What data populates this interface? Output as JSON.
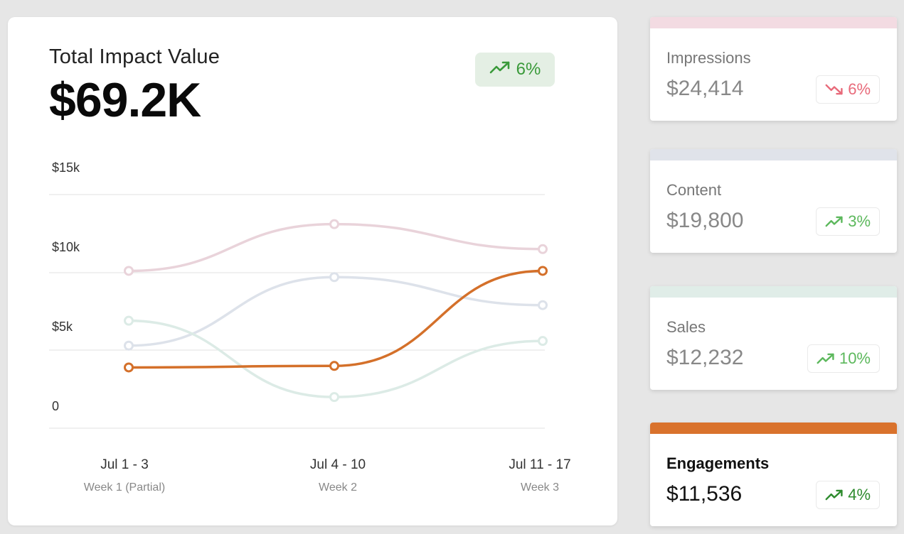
{
  "main": {
    "title": "Total Impact Value",
    "value": "$69.2K",
    "badge": {
      "text": "6%",
      "direction": "up",
      "icon": "trending-up-icon"
    }
  },
  "chart_data": {
    "type": "line",
    "categories": [
      "Jul 1 - 3",
      "Jul 4 - 10",
      "Jul 11 - 17"
    ],
    "sublabels": [
      "Week 1 (Partial)",
      "Week 2",
      "Week 3"
    ],
    "y_ticks": [
      "$15k",
      "$10k",
      "$5k",
      "0"
    ],
    "ylim": [
      0,
      15000
    ],
    "grid": true,
    "series": [
      {
        "name": "Impressions",
        "color": "#e9d3da",
        "values": [
          10100,
          13100,
          11500
        ]
      },
      {
        "name": "Content",
        "color": "#dde2ea",
        "values": [
          5300,
          9700,
          7900
        ]
      },
      {
        "name": "Sales",
        "color": "#dcebe6",
        "values": [
          6900,
          2000,
          5600
        ]
      },
      {
        "name": "Engagements",
        "color": "#d4702a",
        "values": [
          3900,
          4000,
          10100
        ],
        "highlight": true
      }
    ]
  },
  "cards": [
    {
      "label": "Impressions",
      "amount": "$24,414",
      "badge": "6%",
      "direction": "down",
      "icon": "trending-down-icon",
      "bar_color": "#f3dbe2",
      "active": false
    },
    {
      "label": "Content",
      "amount": "$19,800",
      "badge": "3%",
      "direction": "up",
      "icon": "trending-up-icon",
      "bar_color": "#e0e3ea",
      "active": false
    },
    {
      "label": "Sales",
      "amount": "$12,232",
      "badge": "10%",
      "direction": "up",
      "icon": "trending-up-icon",
      "bar_color": "#e0ede8",
      "active": false
    },
    {
      "label": "Engagements",
      "amount": "$11,536",
      "badge": "4%",
      "direction": "up",
      "icon": "trending-up-icon",
      "bar_color": "#d9722c",
      "active": true
    }
  ],
  "colors": {
    "up": "#5cb85c",
    "up_strong": "#2e8b2e",
    "down": "#e86a7a",
    "grid": "#e2e2e2",
    "axis_text": "#333333",
    "sub_text": "#888888"
  }
}
